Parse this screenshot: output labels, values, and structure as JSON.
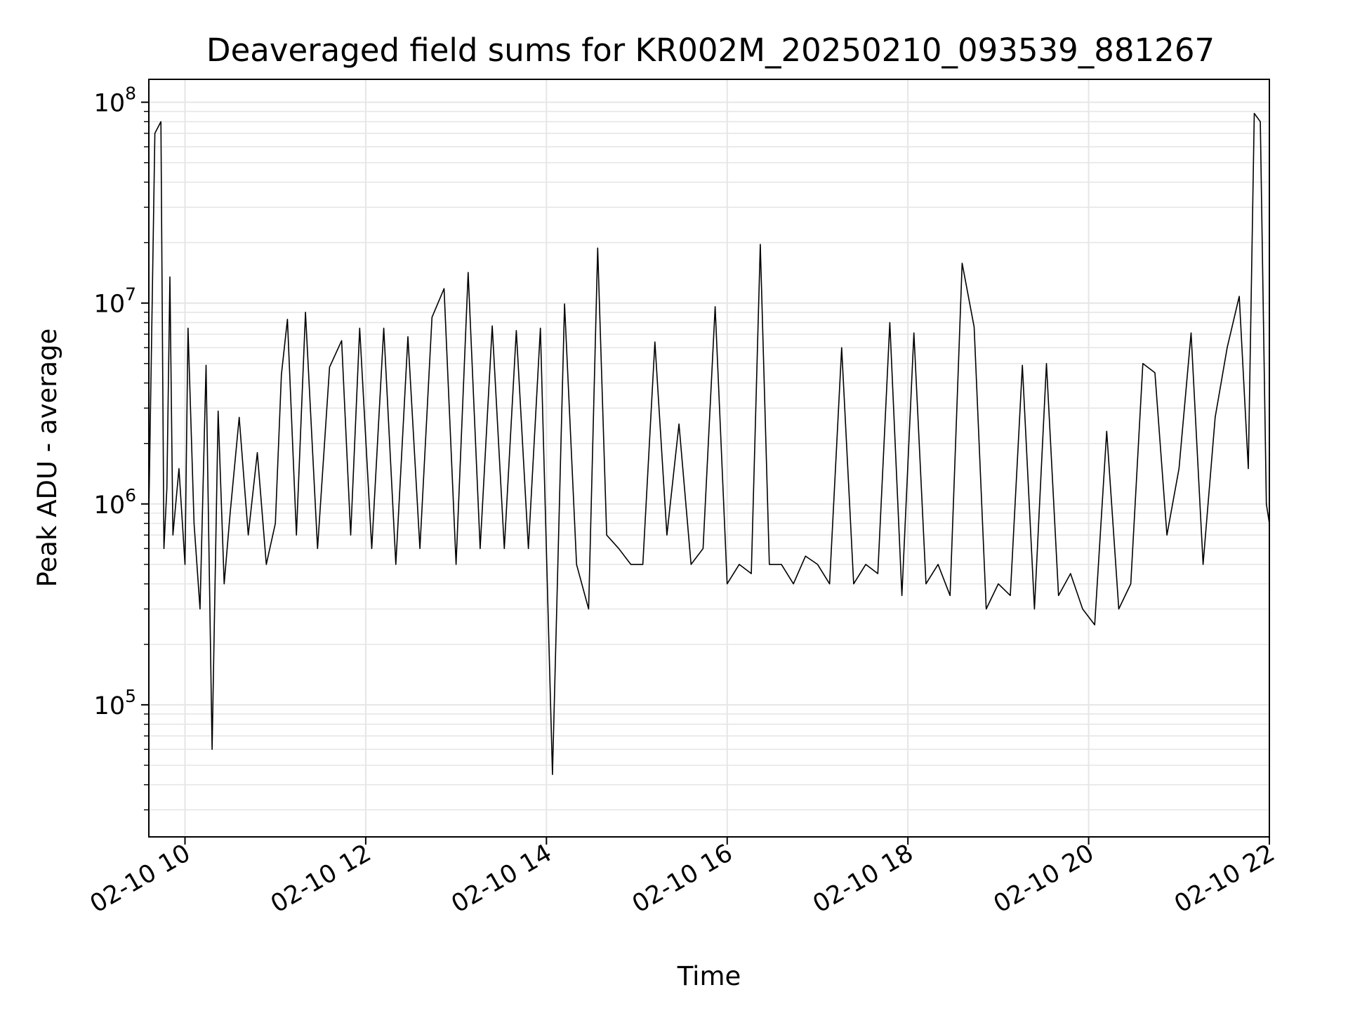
{
  "chart_data": {
    "type": "line",
    "title": "Deaveraged field sums for KR002M_20250210_093539_881267",
    "xlabel": "Time",
    "ylabel": "Peak ADU - average",
    "x_range": [
      "2025-02-10T09:36",
      "2025-02-10T22:00"
    ],
    "y_scale": "log",
    "ylim": [
      22000,
      130000000
    ],
    "grid": true,
    "grid_color": "#e6e6e6",
    "line_color": "#000000",
    "x_ticks": [
      {
        "value": "2025-02-10T10:00",
        "label": "02-10 10"
      },
      {
        "value": "2025-02-10T12:00",
        "label": "02-10 12"
      },
      {
        "value": "2025-02-10T14:00",
        "label": "02-10 14"
      },
      {
        "value": "2025-02-10T16:00",
        "label": "02-10 16"
      },
      {
        "value": "2025-02-10T18:00",
        "label": "02-10 18"
      },
      {
        "value": "2025-02-10T20:00",
        "label": "02-10 20"
      },
      {
        "value": "2025-02-10T22:00",
        "label": "02-10 22"
      }
    ],
    "y_ticks": [
      {
        "value": 100000,
        "base": "10",
        "exp": "5"
      },
      {
        "value": 1000000,
        "base": "10",
        "exp": "6"
      },
      {
        "value": 10000000,
        "base": "10",
        "exp": "7"
      },
      {
        "value": 100000000,
        "base": "10",
        "exp": "8"
      }
    ],
    "series": [
      {
        "x": [
          "2025-02-10T09:36",
          "2025-02-10T09:40",
          "2025-02-10T09:44",
          "2025-02-10T09:46",
          "2025-02-10T09:48",
          "2025-02-10T09:50",
          "2025-02-10T09:52",
          "2025-02-10T09:56",
          "2025-02-10T10:00",
          "2025-02-10T10:02",
          "2025-02-10T10:06",
          "2025-02-10T10:10",
          "2025-02-10T10:14",
          "2025-02-10T10:18",
          "2025-02-10T10:22",
          "2025-02-10T10:26",
          "2025-02-10T10:30",
          "2025-02-10T10:36",
          "2025-02-10T10:42",
          "2025-02-10T10:48",
          "2025-02-10T10:54",
          "2025-02-10T11:00",
          "2025-02-10T11:04",
          "2025-02-10T11:08",
          "2025-02-10T11:14",
          "2025-02-10T11:20",
          "2025-02-10T11:28",
          "2025-02-10T11:36",
          "2025-02-10T11:44",
          "2025-02-10T11:50",
          "2025-02-10T11:56",
          "2025-02-10T12:04",
          "2025-02-10T12:12",
          "2025-02-10T12:20",
          "2025-02-10T12:28",
          "2025-02-10T12:36",
          "2025-02-10T12:44",
          "2025-02-10T12:52",
          "2025-02-10T13:00",
          "2025-02-10T13:08",
          "2025-02-10T13:16",
          "2025-02-10T13:24",
          "2025-02-10T13:32",
          "2025-02-10T13:40",
          "2025-02-10T13:48",
          "2025-02-10T13:56",
          "2025-02-10T14:04",
          "2025-02-10T14:12",
          "2025-02-10T14:20",
          "2025-02-10T14:28",
          "2025-02-10T14:34",
          "2025-02-10T14:40",
          "2025-02-10T14:48",
          "2025-02-10T14:56",
          "2025-02-10T15:04",
          "2025-02-10T15:12",
          "2025-02-10T15:20",
          "2025-02-10T15:28",
          "2025-02-10T15:36",
          "2025-02-10T15:44",
          "2025-02-10T15:52",
          "2025-02-10T16:00",
          "2025-02-10T16:08",
          "2025-02-10T16:16",
          "2025-02-10T16:22",
          "2025-02-10T16:28",
          "2025-02-10T16:36",
          "2025-02-10T16:44",
          "2025-02-10T16:52",
          "2025-02-10T17:00",
          "2025-02-10T17:08",
          "2025-02-10T17:16",
          "2025-02-10T17:24",
          "2025-02-10T17:32",
          "2025-02-10T17:40",
          "2025-02-10T17:48",
          "2025-02-10T17:56",
          "2025-02-10T18:04",
          "2025-02-10T18:12",
          "2025-02-10T18:20",
          "2025-02-10T18:28",
          "2025-02-10T18:36",
          "2025-02-10T18:44",
          "2025-02-10T18:52",
          "2025-02-10T19:00",
          "2025-02-10T19:08",
          "2025-02-10T19:16",
          "2025-02-10T19:24",
          "2025-02-10T19:32",
          "2025-02-10T19:40",
          "2025-02-10T19:48",
          "2025-02-10T19:56",
          "2025-02-10T20:04",
          "2025-02-10T20:12",
          "2025-02-10T20:20",
          "2025-02-10T20:28",
          "2025-02-10T20:36",
          "2025-02-10T20:44",
          "2025-02-10T20:52",
          "2025-02-10T21:00",
          "2025-02-10T21:08",
          "2025-02-10T21:16",
          "2025-02-10T21:24",
          "2025-02-10T21:32",
          "2025-02-10T21:40",
          "2025-02-10T21:46",
          "2025-02-10T21:50",
          "2025-02-10T21:54",
          "2025-02-10T21:58",
          "2025-02-10T22:00"
        ],
        "y": [
          900000,
          70000000,
          80000000,
          600000,
          1200000,
          13500000,
          700000,
          1500000,
          500000,
          7500000,
          800000,
          300000,
          4900000,
          60000,
          2900000,
          400000,
          900000,
          2700000,
          700000,
          1800000,
          500000,
          800000,
          4400000,
          8300000,
          700000,
          9000000,
          600000,
          4800000,
          6500000,
          700000,
          7500000,
          600000,
          7500000,
          500000,
          6800000,
          600000,
          8500000,
          11800000,
          500000,
          14200000,
          600000,
          7700000,
          600000,
          7300000,
          600000,
          7500000,
          45000,
          9900000,
          500000,
          300000,
          18800000,
          700000,
          600000,
          500000,
          500000,
          6400000,
          700000,
          2500000,
          500000,
          600000,
          9600000,
          400000,
          500000,
          450000,
          19600000,
          500000,
          500000,
          400000,
          550000,
          500000,
          400000,
          6000000,
          400000,
          500000,
          450000,
          8000000,
          350000,
          7100000,
          400000,
          500000,
          350000,
          15800000,
          7600000,
          300000,
          400000,
          350000,
          4900000,
          300000,
          5000000,
          350000,
          450000,
          300000,
          250000,
          2300000,
          300000,
          400000,
          5000000,
          4500000,
          700000,
          1500000,
          7100000,
          500000,
          2700000,
          6000000,
          10800000,
          1500000,
          88000000,
          80000000,
          1000000,
          800000
        ]
      }
    ]
  }
}
